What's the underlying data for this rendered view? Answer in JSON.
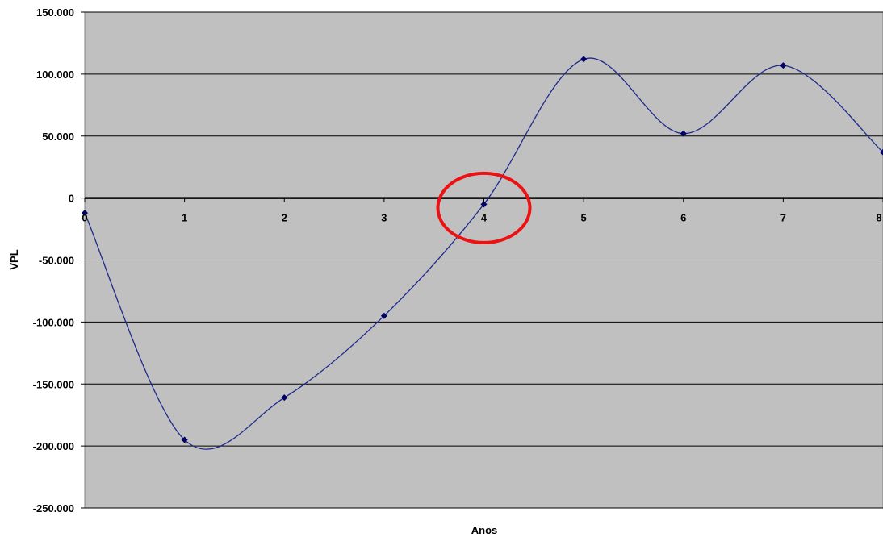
{
  "chart_data": {
    "type": "line",
    "title": "",
    "xlabel": "Anos",
    "ylabel": "VPL",
    "xlim": [
      0,
      8
    ],
    "ylim": [
      -250000,
      150000
    ],
    "y_ticks": [
      150000,
      100000,
      50000,
      0,
      -50000,
      -100000,
      -150000,
      -200000,
      -250000
    ],
    "y_tick_labels": [
      "150.000",
      "100.000",
      "50.000",
      "0",
      "-50.000",
      "-100.000",
      "-150.000",
      "-200.000",
      "-250.000"
    ],
    "x_ticks": [
      0,
      1,
      2,
      3,
      4,
      5,
      6,
      7,
      8
    ],
    "x_tick_labels": [
      "0",
      "1",
      "2",
      "3",
      "4",
      "5",
      "6",
      "7",
      "8"
    ],
    "grid": true,
    "smooth": true,
    "series": [
      {
        "x": [
          0,
          1,
          2,
          3,
          4,
          5,
          6,
          7,
          8
        ],
        "values": [
          -12000,
          -195000,
          -161000,
          -95000,
          -5000,
          112000,
          52000,
          107000,
          37000
        ]
      }
    ],
    "annotations": [
      {
        "shape": "ellipse",
        "x": 4,
        "y": -8000
      }
    ],
    "colors": {
      "plot_background": "#c0c0c0",
      "line": "#1f2a8c",
      "marker": "#000066",
      "gridline": "#000000",
      "annotation": "#ee1111"
    }
  }
}
